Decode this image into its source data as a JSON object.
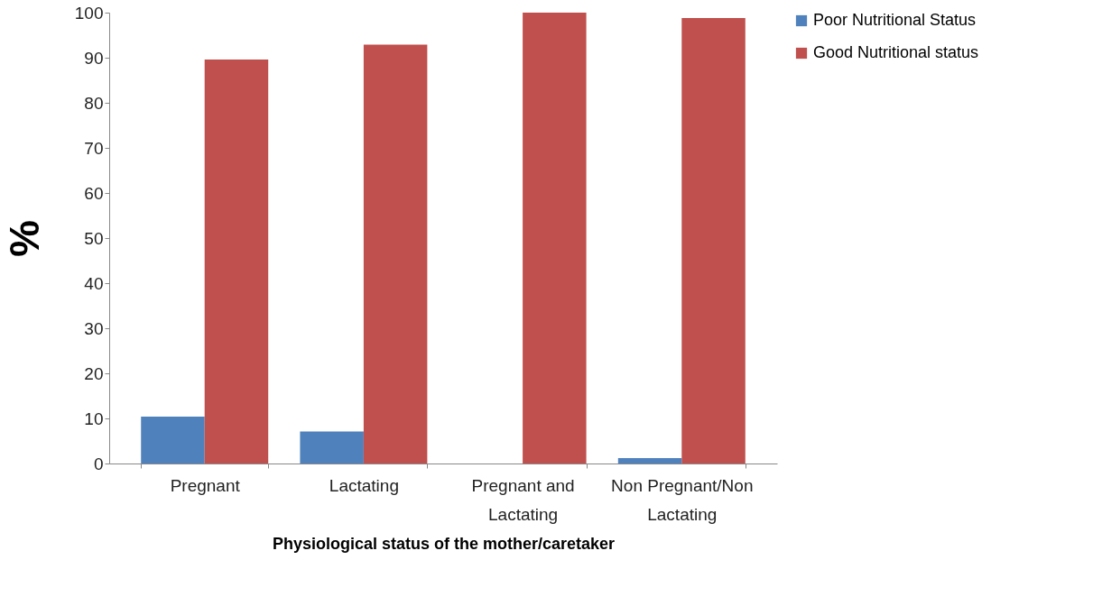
{
  "chart_data": {
    "type": "bar",
    "xlabel": "Physiological status of the mother/caretaker",
    "ylabel": "%",
    "categories": [
      "Pregnant",
      "Lactating",
      "Pregnant and Lactating",
      "Non Pregnant/Non Lactating"
    ],
    "series": [
      {
        "name": "Poor Nutritional Status",
        "color": "#4f81bd",
        "values": [
          10.4,
          7.1,
          0,
          1.2
        ]
      },
      {
        "name": "Good Nutritional status",
        "color": "#c0504d",
        "values": [
          89.6,
          92.9,
          100,
          98.8
        ]
      }
    ],
    "ylim": [
      0,
      100
    ],
    "yticks": [
      0,
      10,
      20,
      30,
      40,
      50,
      60,
      70,
      80,
      90,
      100
    ],
    "grid": false,
    "legend": "right"
  }
}
